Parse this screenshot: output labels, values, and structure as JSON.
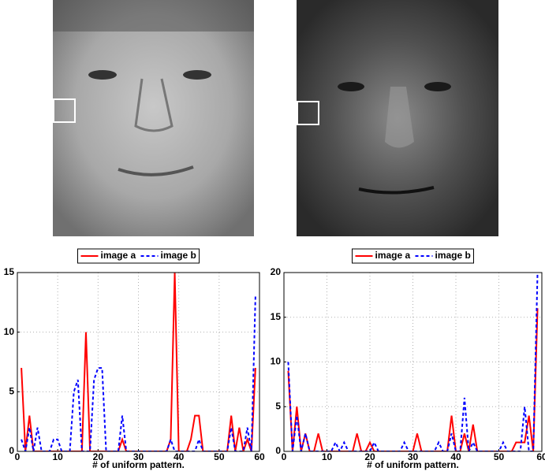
{
  "chart_data": [
    {
      "type": "line",
      "x_label": "# of uniform pattern.",
      "x": [
        1,
        2,
        3,
        4,
        5,
        6,
        7,
        8,
        9,
        10,
        11,
        12,
        13,
        14,
        15,
        16,
        17,
        18,
        19,
        20,
        21,
        22,
        23,
        24,
        25,
        26,
        27,
        28,
        29,
        30,
        31,
        32,
        33,
        34,
        35,
        36,
        37,
        38,
        39,
        40,
        41,
        42,
        43,
        44,
        45,
        46,
        47,
        48,
        49,
        50,
        51,
        52,
        53,
        54,
        55,
        56,
        57,
        58,
        59
      ],
      "series": [
        {
          "name": "image a",
          "color": "#ff0000",
          "style": "solid",
          "values": [
            7,
            0,
            3,
            0,
            0,
            0,
            0,
            0,
            0,
            0,
            0,
            0,
            0,
            0,
            0,
            0,
            10,
            0,
            0,
            0,
            0,
            0,
            0,
            0,
            0,
            1,
            0,
            0,
            0,
            0,
            0,
            0,
            0,
            0,
            0,
            0,
            0,
            1,
            15,
            0,
            0,
            0,
            1,
            3,
            3,
            0,
            0,
            0,
            0,
            0,
            0,
            0,
            3,
            0,
            2,
            0,
            1,
            0,
            7
          ]
        },
        {
          "name": "image b",
          "color": "#0000ff",
          "style": "dashed",
          "values": [
            1,
            0,
            2,
            0,
            2,
            0,
            0,
            0,
            1,
            1,
            0,
            0,
            0,
            5,
            6,
            0,
            0,
            0,
            6,
            7,
            7,
            0,
            0,
            0,
            0,
            3,
            0,
            0,
            0,
            0,
            0,
            0,
            0,
            0,
            0,
            0,
            0,
            1,
            0,
            0,
            0,
            0,
            0,
            0,
            1,
            0,
            0,
            0,
            0,
            0,
            0,
            0,
            2,
            0,
            0,
            0,
            2,
            0,
            13
          ]
        }
      ],
      "xlim": [
        0,
        60
      ],
      "xticks": [
        0,
        10,
        20,
        30,
        40,
        50,
        60
      ],
      "ylim": [
        0,
        15
      ],
      "yticks": [
        0,
        5,
        10,
        15
      ],
      "grid": true
    },
    {
      "type": "line",
      "x_label": "# of uniform pattern.",
      "x": [
        1,
        2,
        3,
        4,
        5,
        6,
        7,
        8,
        9,
        10,
        11,
        12,
        13,
        14,
        15,
        16,
        17,
        18,
        19,
        20,
        21,
        22,
        23,
        24,
        25,
        26,
        27,
        28,
        29,
        30,
        31,
        32,
        33,
        34,
        35,
        36,
        37,
        38,
        39,
        40,
        41,
        42,
        43,
        44,
        45,
        46,
        47,
        48,
        49,
        50,
        51,
        52,
        53,
        54,
        55,
        56,
        57,
        58,
        59
      ],
      "series": [
        {
          "name": "image a",
          "color": "#ff0000",
          "style": "solid",
          "values": [
            9,
            0,
            5,
            0,
            2,
            0,
            0,
            2,
            0,
            0,
            0,
            0,
            0,
            0,
            0,
            0,
            2,
            0,
            0,
            1,
            0,
            0,
            0,
            0,
            0,
            0,
            0,
            0,
            0,
            0,
            2,
            0,
            0,
            0,
            0,
            0,
            0,
            0,
            4,
            0,
            0,
            2,
            0,
            3,
            0,
            0,
            0,
            0,
            0,
            0,
            0,
            0,
            0,
            1,
            1,
            1,
            4,
            0,
            16
          ]
        },
        {
          "name": "image b",
          "color": "#0000ff",
          "style": "dashed",
          "values": [
            10,
            0,
            4,
            0,
            2,
            0,
            0,
            0,
            0,
            0,
            0,
            1,
            0,
            1,
            0,
            0,
            0,
            0,
            0,
            0,
            1,
            0,
            0,
            0,
            0,
            0,
            0,
            1,
            0,
            0,
            0,
            0,
            0,
            0,
            0,
            1,
            0,
            0,
            2,
            0,
            0,
            6,
            0,
            1,
            0,
            0,
            0,
            0,
            0,
            0,
            1,
            0,
            0,
            0,
            0,
            5,
            0,
            0,
            20
          ]
        }
      ],
      "xlim": [
        0,
        60
      ],
      "xticks": [
        0,
        10,
        20,
        30,
        40,
        50,
        60
      ],
      "ylim": [
        0,
        20
      ],
      "yticks": [
        0,
        5,
        10,
        15,
        20
      ],
      "grid": true
    }
  ]
}
